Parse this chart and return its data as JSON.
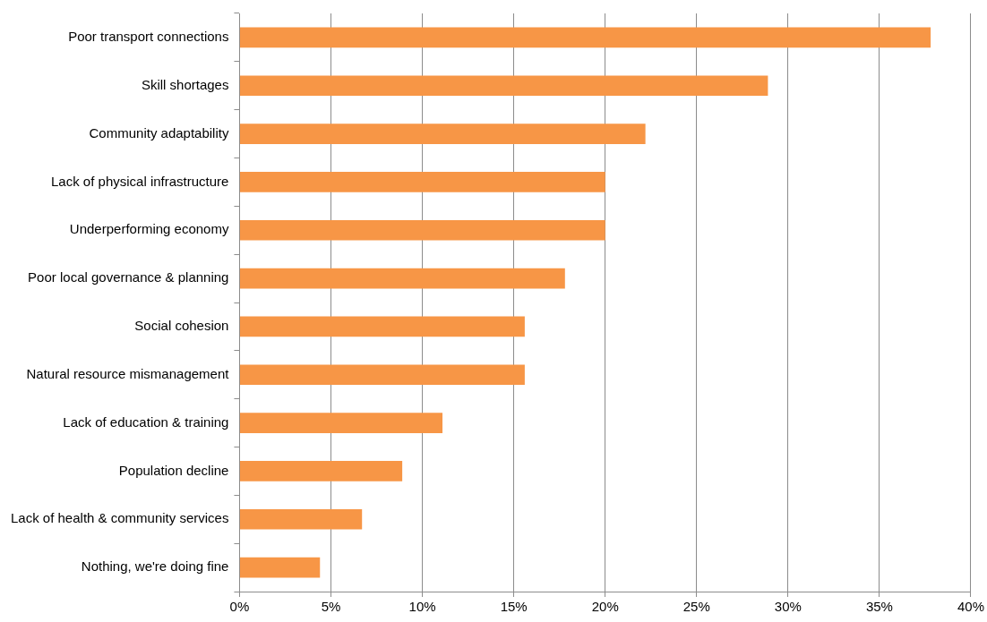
{
  "chart_data": {
    "type": "bar",
    "orientation": "horizontal",
    "categories": [
      "Poor transport connections",
      "Skill shortages",
      "Community adaptability",
      "Lack of physical infrastructure",
      "Underperforming economy",
      "Poor local governance & planning",
      "Social cohesion",
      "Natural resource mismanagement",
      "Lack of education & training",
      "Population decline",
      "Lack of health & community services",
      "Nothing, we're doing fine"
    ],
    "values": [
      37.8,
      28.9,
      22.2,
      20.0,
      20.0,
      17.8,
      15.6,
      15.6,
      11.1,
      8.9,
      6.7,
      4.4
    ],
    "color": "#f79646",
    "xlim": [
      0,
      40
    ],
    "xticks": [
      {
        "value": 0,
        "label": "0%"
      },
      {
        "value": 5,
        "label": "5%"
      },
      {
        "value": 10,
        "label": "10%"
      },
      {
        "value": 15,
        "label": "15%"
      },
      {
        "value": 20,
        "label": "20%"
      },
      {
        "value": 25,
        "label": "25%"
      },
      {
        "value": 30,
        "label": "30%"
      },
      {
        "value": 35,
        "label": "35%"
      },
      {
        "value": 40,
        "label": "40%"
      }
    ],
    "grid": "x",
    "legend": false
  }
}
